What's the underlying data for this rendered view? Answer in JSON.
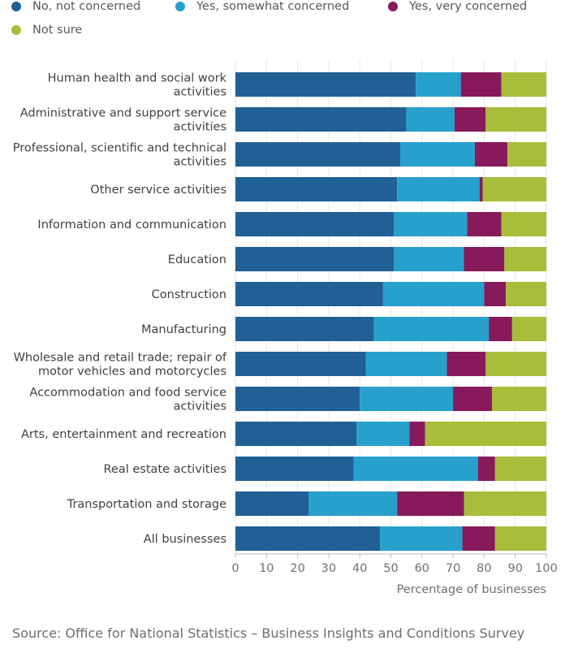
{
  "chart_data": {
    "type": "bar",
    "orientation": "horizontal",
    "stacked": true,
    "xlabel": "Percentage of businesses",
    "ylabel": "",
    "xlim": [
      0,
      100
    ],
    "x_ticks": [
      "0",
      "10",
      "20",
      "30",
      "40",
      "50",
      "60",
      "70",
      "80",
      "90",
      "100"
    ],
    "grid": true,
    "legend_position": "top",
    "categories": [
      [
        "Human health and social work",
        "activities"
      ],
      [
        "Administrative and support service",
        "activities"
      ],
      [
        "Professional, scientific and technical",
        "activities"
      ],
      [
        "Other service activities"
      ],
      [
        "Information and communication"
      ],
      [
        "Education"
      ],
      [
        "Construction"
      ],
      [
        "Manufacturing"
      ],
      [
        "Wholesale and retail trade; repair of",
        "motor vehicles and motorcycles"
      ],
      [
        "Accommodation and food service",
        "activities"
      ],
      [
        "Arts, entertainment and recreation"
      ],
      [
        "Real estate activities"
      ],
      [
        "Transportation and storage"
      ],
      [
        "All businesses"
      ]
    ],
    "series": [
      {
        "name": "No, not concerned",
        "color": "#206095",
        "values": [
          58,
          55,
          53,
          52,
          51,
          51,
          47.5,
          44.5,
          42,
          40,
          39,
          38,
          23.5,
          46.5
        ]
      },
      {
        "name": "Yes, somewhat concerned",
        "color": "#27a0cc",
        "values": [
          14.5,
          15.5,
          24,
          26.5,
          23.5,
          22.5,
          32.5,
          37,
          26,
          30,
          17,
          40,
          28.5,
          26.5
        ]
      },
      {
        "name": "Yes, very concerned",
        "color": "#871a5b",
        "values": [
          13,
          10,
          10.5,
          1,
          11,
          13,
          7,
          7.5,
          12.5,
          12.5,
          5,
          5.5,
          21.5,
          10.5
        ]
      },
      {
        "name": "Not sure",
        "color": "#a8bd3a",
        "values": [
          14.5,
          19.5,
          12.5,
          20.5,
          14.5,
          13.5,
          13,
          11,
          19.5,
          17.5,
          39,
          16.5,
          26.5,
          16.5
        ]
      }
    ]
  },
  "source": "Source: Office for National Statistics – Business Insights and Conditions Survey"
}
